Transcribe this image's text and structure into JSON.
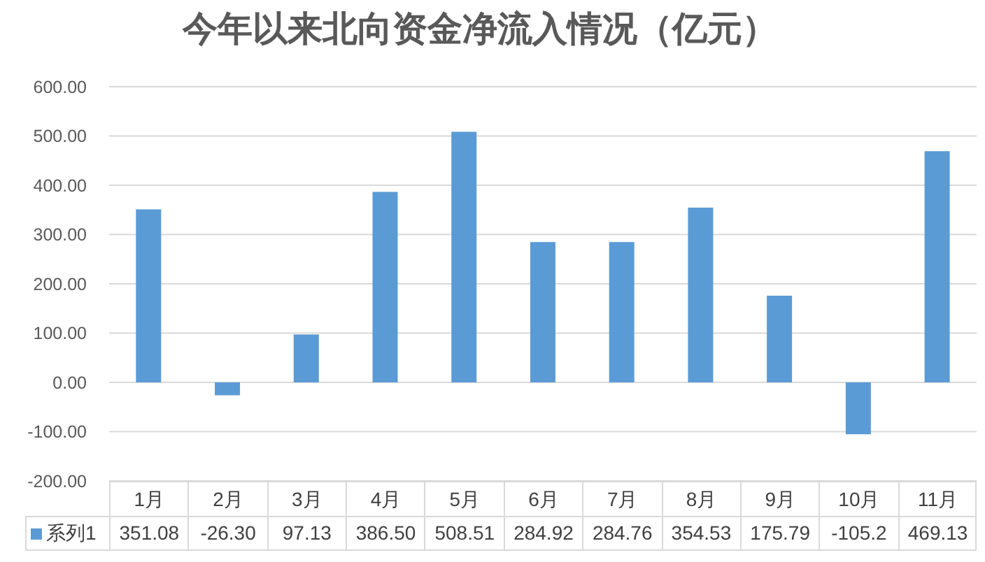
{
  "chart_data": {
    "type": "bar",
    "title": "今年以来北向资金净流入情况（亿元）",
    "categories": [
      "1月",
      "2月",
      "3月",
      "4月",
      "5月",
      "6月",
      "7月",
      "8月",
      "9月",
      "10月",
      "11月"
    ],
    "series": [
      {
        "name": "系列1",
        "color": "#5b9bd5",
        "values": [
          351.08,
          -26.3,
          97.13,
          386.5,
          508.51,
          284.92,
          284.76,
          354.53,
          175.79,
          -105.2,
          469.13
        ],
        "value_labels": [
          "351.08",
          "-26.30",
          "97.13",
          "386.50",
          "508.51",
          "284.92",
          "284.76",
          "354.53",
          "175.79",
          "-105.2",
          "469.13"
        ]
      }
    ],
    "ylim": [
      -200,
      600
    ],
    "yticks": [
      {
        "value": -200,
        "label": "-200.00"
      },
      {
        "value": -100,
        "label": "-100.00"
      },
      {
        "value": 0,
        "label": "0.00"
      },
      {
        "value": 100,
        "label": "100.00"
      },
      {
        "value": 200,
        "label": "200.00"
      },
      {
        "value": 300,
        "label": "300.00"
      },
      {
        "value": 400,
        "label": "400.00"
      },
      {
        "value": 500,
        "label": "500.00"
      },
      {
        "value": 600,
        "label": "600.00"
      }
    ],
    "grid": "y",
    "legend": "bottom left"
  }
}
